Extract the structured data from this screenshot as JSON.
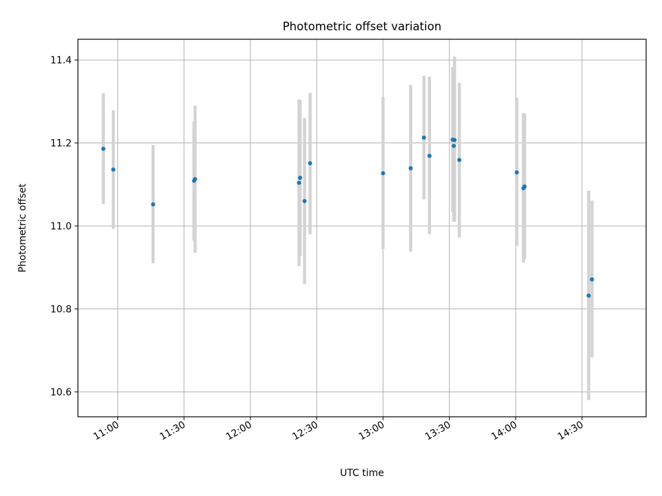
{
  "chart_data": {
    "type": "scatter",
    "title": "Photometric offset variation",
    "xlabel": "UTC time",
    "ylabel": "Photometric offset",
    "xlim": [
      "10:42",
      "14:59"
    ],
    "ylim": [
      10.54,
      11.45
    ],
    "grid": true,
    "xticks": [
      "11:00",
      "11:30",
      "12:00",
      "12:30",
      "13:00",
      "13:30",
      "14:00",
      "14:30"
    ],
    "yticks": [
      "10.6",
      "10.8",
      "11.0",
      "11.2",
      "11.4"
    ],
    "colors": {
      "point": "#1f77b4",
      "errorbar": "#d3d3d3",
      "grid": "#b0b0b0"
    },
    "points": [
      {
        "x": "10:53:30",
        "y": 11.186,
        "ylow": 11.053,
        "yhigh": 11.32
      },
      {
        "x": "10:58:00",
        "y": 11.136,
        "ylow": 10.993,
        "yhigh": 11.279
      },
      {
        "x": "11:16:00",
        "y": 11.052,
        "ylow": 10.91,
        "yhigh": 11.195
      },
      {
        "x": "11:34:30",
        "y": 11.109,
        "ylow": 10.965,
        "yhigh": 11.252
      },
      {
        "x": "11:35:00",
        "y": 11.113,
        "ylow": 10.935,
        "yhigh": 11.29
      },
      {
        "x": "12:22:00",
        "y": 11.104,
        "ylow": 10.903,
        "yhigh": 11.305
      },
      {
        "x": "12:22:30",
        "y": 11.116,
        "ylow": 10.928,
        "yhigh": 11.304
      },
      {
        "x": "12:24:30",
        "y": 11.06,
        "ylow": 10.86,
        "yhigh": 11.26
      },
      {
        "x": "12:27:00",
        "y": 11.151,
        "ylow": 10.98,
        "yhigh": 11.321
      },
      {
        "x": "13:00:00",
        "y": 11.127,
        "ylow": 10.944,
        "yhigh": 11.311
      },
      {
        "x": "13:12:30",
        "y": 11.139,
        "ylow": 10.938,
        "yhigh": 11.34
      },
      {
        "x": "13:18:30",
        "y": 11.213,
        "ylow": 11.064,
        "yhigh": 11.362
      },
      {
        "x": "13:21:00",
        "y": 11.169,
        "ylow": 10.98,
        "yhigh": 11.36
      },
      {
        "x": "13:31:30",
        "y": 11.208,
        "ylow": 11.034,
        "yhigh": 11.383
      },
      {
        "x": "13:32:00",
        "y": 11.193,
        "ylow": 11.01,
        "yhigh": 11.376
      },
      {
        "x": "13:32:20",
        "y": 11.207,
        "ylow": 11.01,
        "yhigh": 11.408
      },
      {
        "x": "13:34:30",
        "y": 11.159,
        "ylow": 10.972,
        "yhigh": 11.345
      },
      {
        "x": "14:00:30",
        "y": 11.129,
        "ylow": 10.952,
        "yhigh": 11.309
      },
      {
        "x": "14:03:30",
        "y": 11.091,
        "ylow": 10.912,
        "yhigh": 11.272
      },
      {
        "x": "14:04:00",
        "y": 11.095,
        "ylow": 10.92,
        "yhigh": 11.27
      },
      {
        "x": "14:33:00",
        "y": 10.832,
        "ylow": 10.58,
        "yhigh": 11.085
      },
      {
        "x": "14:34:30",
        "y": 10.871,
        "ylow": 10.683,
        "yhigh": 11.061
      }
    ]
  }
}
